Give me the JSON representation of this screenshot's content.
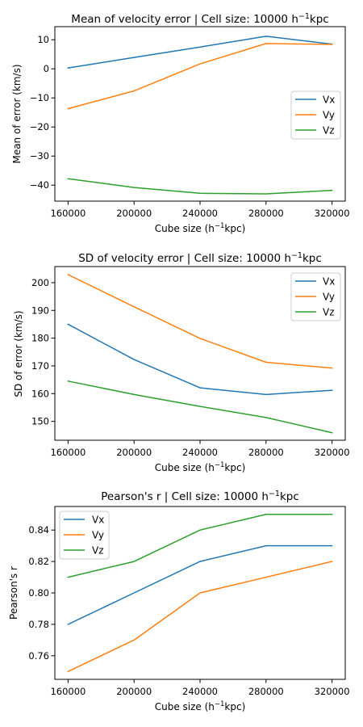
{
  "chart_data": [
    {
      "type": "line",
      "title_main": "Mean of velocity error | Cell size: 10000 h",
      "title_sup": "−1",
      "title_tail": "kpc",
      "xlabel_main": "Cube size (h",
      "xlabel_sup": "−1",
      "xlabel_tail": "kpc)",
      "ylabel": "Mean of error (km/s)",
      "x": [
        160000,
        200000,
        240000,
        280000,
        320000
      ],
      "xticks": [
        "160000",
        "200000",
        "240000",
        "280000",
        "320000"
      ],
      "xlim": [
        152000,
        328000
      ],
      "ylim": [
        -45.5,
        14.5
      ],
      "yticks": [
        {
          "v": 10,
          "label": "10"
        },
        {
          "v": 0,
          "label": "0"
        },
        {
          "v": -10,
          "label": "−10"
        },
        {
          "v": -20,
          "label": "−20"
        },
        {
          "v": -30,
          "label": "−30"
        },
        {
          "v": -40,
          "label": "−40"
        }
      ],
      "legend": "center-right",
      "grid": false,
      "series": [
        {
          "name": "Vx",
          "color": "#1f77b4",
          "values": [
            0.3,
            3.9,
            7.5,
            11.2,
            8.5
          ]
        },
        {
          "name": "Vy",
          "color": "#ff7f0e",
          "values": [
            -13.7,
            -7.6,
            1.7,
            8.7,
            8.4
          ]
        },
        {
          "name": "Vz",
          "color": "#2ca02c",
          "values": [
            -37.8,
            -40.8,
            -42.8,
            -43.0,
            -41.8
          ]
        }
      ]
    },
    {
      "type": "line",
      "title_main": "SD of velocity error | Cell size: 10000 h",
      "title_sup": "−1",
      "title_tail": "kpc",
      "xlabel_main": "Cube size (h",
      "xlabel_sup": "−1",
      "xlabel_tail": "kpc)",
      "ylabel": "SD of error (km/s)",
      "x": [
        160000,
        200000,
        240000,
        280000,
        320000
      ],
      "xticks": [
        "160000",
        "200000",
        "240000",
        "280000",
        "320000"
      ],
      "xlim": [
        152000,
        328000
      ],
      "ylim": [
        143.2,
        205.8
      ],
      "yticks": [
        {
          "v": 200,
          "label": "200"
        },
        {
          "v": 190,
          "label": "190"
        },
        {
          "v": 180,
          "label": "180"
        },
        {
          "v": 170,
          "label": "170"
        },
        {
          "v": 160,
          "label": "160"
        },
        {
          "v": 150,
          "label": "150"
        }
      ],
      "legend": "upper-right",
      "grid": false,
      "series": [
        {
          "name": "Vx",
          "color": "#1f77b4",
          "values": [
            185.0,
            172.3,
            162.1,
            159.7,
            161.2
          ]
        },
        {
          "name": "Vy",
          "color": "#ff7f0e",
          "values": [
            202.9,
            191.3,
            179.9,
            171.3,
            169.2
          ]
        },
        {
          "name": "Vz",
          "color": "#2ca02c",
          "values": [
            164.5,
            159.7,
            155.4,
            151.4,
            145.9
          ]
        }
      ]
    },
    {
      "type": "line",
      "title_main": "Pearson's r | Cell size: 10000 h",
      "title_sup": "−1",
      "title_tail": "kpc",
      "xlabel_main": "Cube size (h",
      "xlabel_sup": "−1",
      "xlabel_tail": "kpc)",
      "ylabel": "Pearson's r",
      "x": [
        160000,
        200000,
        240000,
        280000,
        320000
      ],
      "xticks": [
        "160000",
        "200000",
        "240000",
        "280000",
        "320000"
      ],
      "xlim": [
        152000,
        328000
      ],
      "ylim": [
        0.745,
        0.855
      ],
      "yticks": [
        {
          "v": 0.84,
          "label": "0.84"
        },
        {
          "v": 0.82,
          "label": "0.82"
        },
        {
          "v": 0.8,
          "label": "0.80"
        },
        {
          "v": 0.78,
          "label": "0.78"
        },
        {
          "v": 0.76,
          "label": "0.76"
        }
      ],
      "legend": "upper-left",
      "grid": false,
      "series": [
        {
          "name": "Vx",
          "color": "#1f77b4",
          "values": [
            0.78,
            0.8,
            0.82,
            0.83,
            0.83
          ]
        },
        {
          "name": "Vy",
          "color": "#ff7f0e",
          "values": [
            0.75,
            0.77,
            0.8,
            0.81,
            0.82
          ]
        },
        {
          "name": "Vz",
          "color": "#2ca02c",
          "values": [
            0.81,
            0.82,
            0.84,
            0.85,
            0.85
          ]
        }
      ]
    }
  ]
}
